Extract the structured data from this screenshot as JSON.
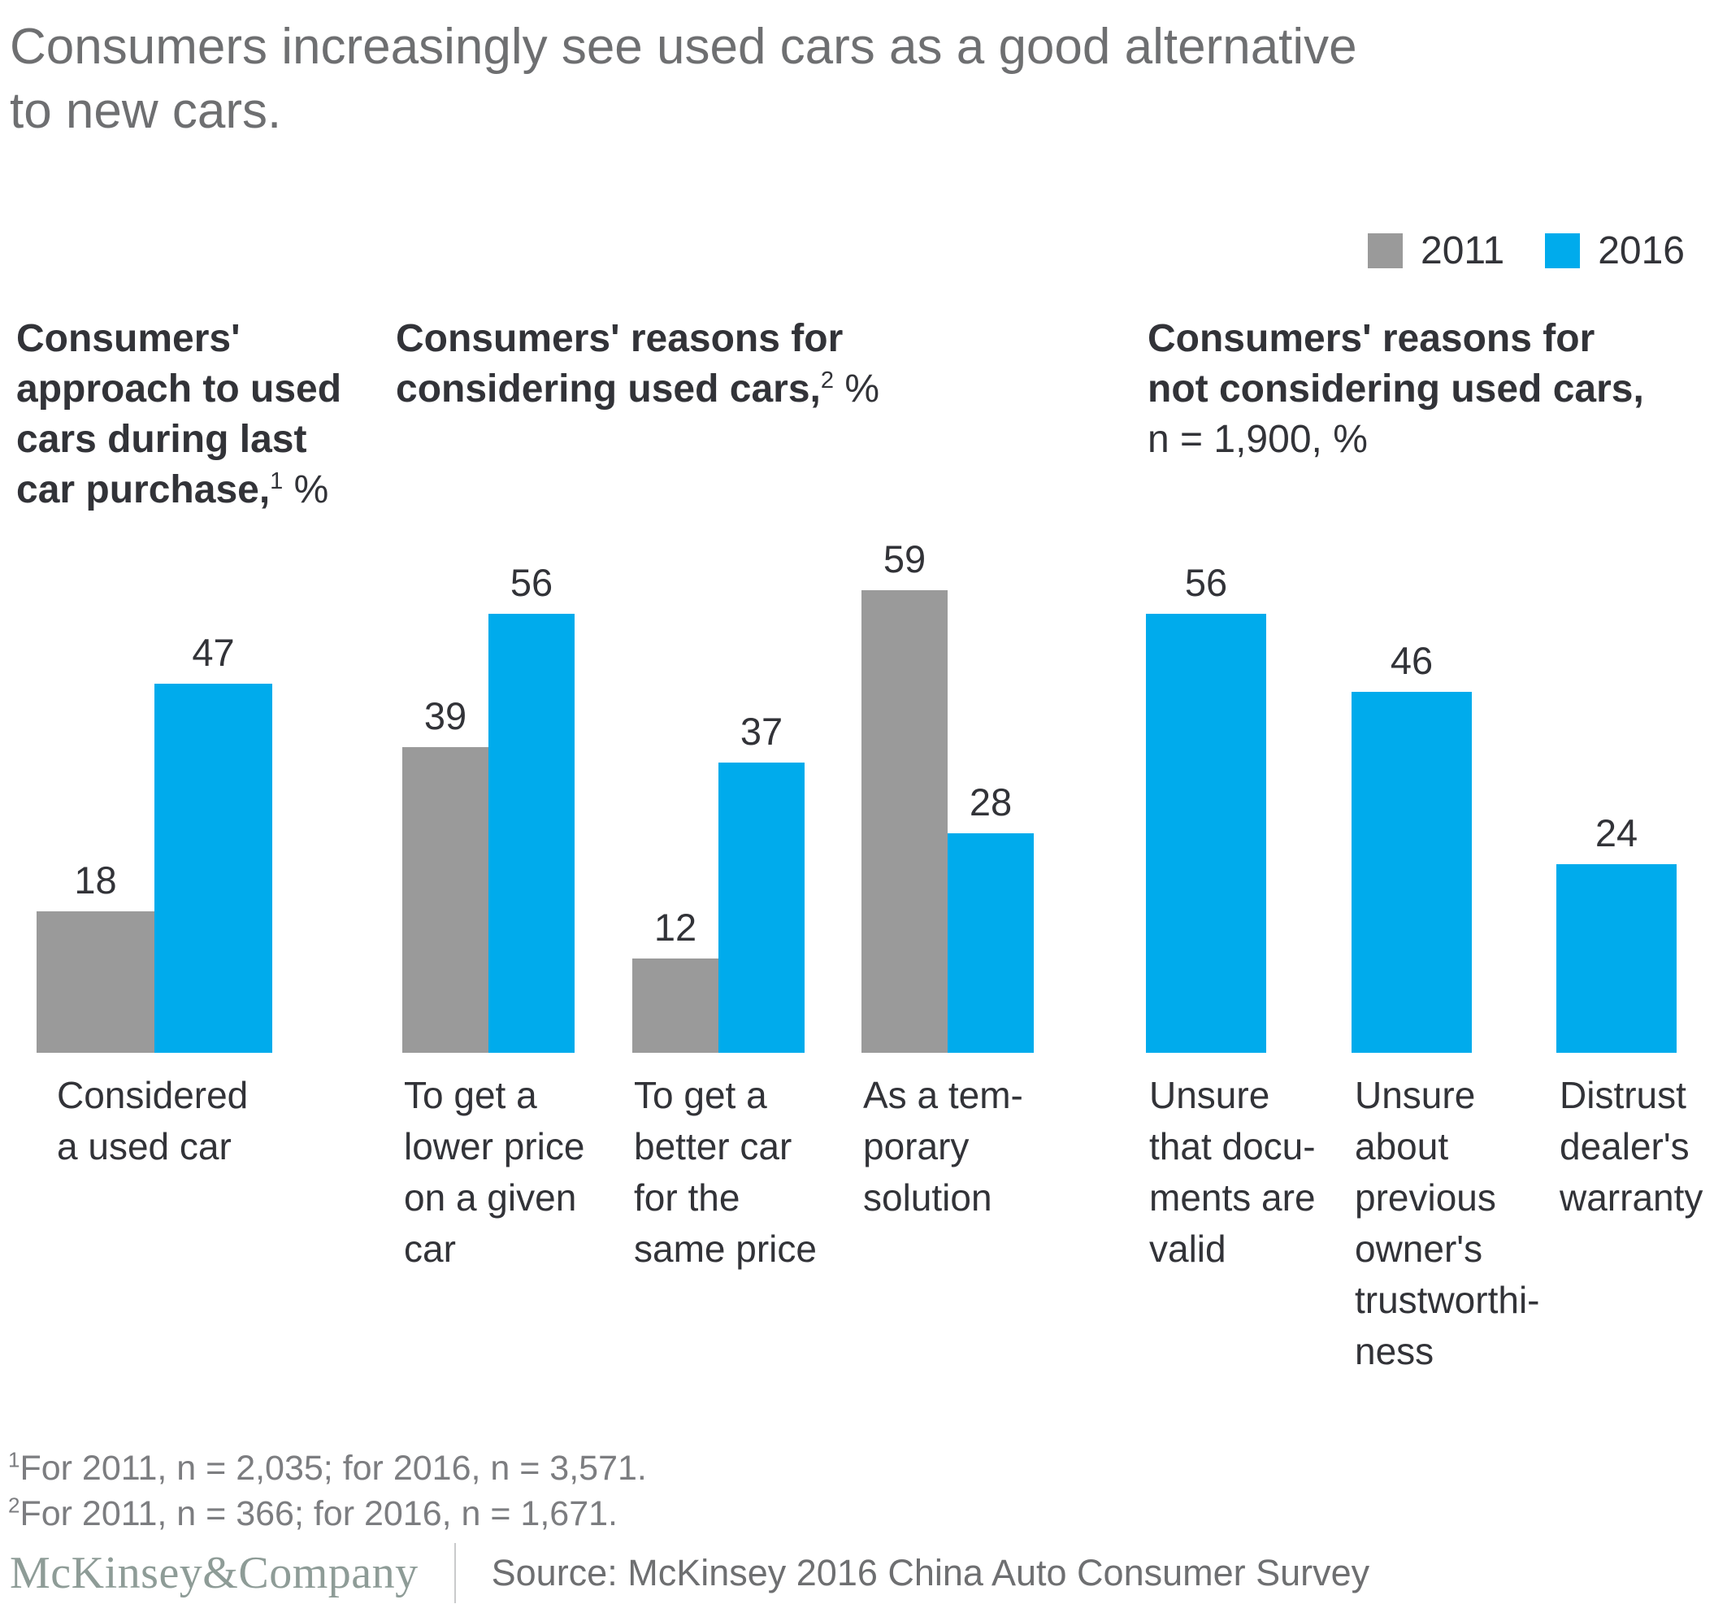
{
  "title": {
    "lines": [
      "Consumers increasingly see used cars as a good alternative",
      "to new cars."
    ]
  },
  "chart_data": {
    "type": "bar",
    "title": "Consumers increasingly see used cars as a good alternative to new cars.",
    "unit": "%",
    "grid": false,
    "legend_position": "top-right",
    "series": [
      {
        "name": "2011",
        "color": "#9A9A9A"
      },
      {
        "name": "2016",
        "color": "#00ABEC"
      }
    ],
    "panels": [
      {
        "heading_lines": [
          {
            "text": "Consumers'",
            "bold": true
          },
          {
            "text": "approach to used",
            "bold": true
          },
          {
            "text": "cars during last",
            "bold": true
          },
          {
            "text": "car purchase,",
            "bold": true,
            "sup": "1",
            "after": " %"
          }
        ],
        "groups": [
          {
            "label": "Considered a used car",
            "label_lines": [
              "Considered",
              "a used car"
            ],
            "values": [
              18,
              47
            ]
          }
        ]
      },
      {
        "heading_lines": [
          {
            "text": "Consumers' reasons for",
            "bold": true
          },
          {
            "text": "considering used cars,",
            "bold": true,
            "sup": "2",
            "after": " %"
          }
        ],
        "groups": [
          {
            "label": "To get a lower price on a given car",
            "label_lines": [
              "To get a",
              "lower price",
              "on a given",
              "car"
            ],
            "values": [
              39,
              56
            ]
          },
          {
            "label": "To get a better car for the same price",
            "label_lines": [
              "To get a",
              "better car",
              "for the",
              "same price"
            ],
            "values": [
              12,
              37
            ]
          },
          {
            "label": "As a temporary solution",
            "label_lines": [
              "As a tem-",
              "porary",
              "solution"
            ],
            "values": [
              59,
              28
            ]
          }
        ]
      },
      {
        "heading_lines": [
          {
            "text": "Consumers' reasons for",
            "bold": true
          },
          {
            "text": "not considering used cars,",
            "bold": true
          },
          {
            "text": "n = 1,900, %",
            "bold": false
          }
        ],
        "groups": [
          {
            "label": "Unsure that documents are valid",
            "label_lines": [
              "Unsure",
              "that docu-",
              "ments are",
              "valid"
            ],
            "values": [
              null,
              56
            ]
          },
          {
            "label": "Unsure about previous owner's trustworthiness",
            "label_lines": [
              "Unsure",
              "about",
              "previous",
              "owner's",
              "trustworthi-",
              "ness"
            ],
            "values": [
              null,
              46
            ]
          },
          {
            "label": "Distrust dealer's warranty",
            "label_lines": [
              "Distrust",
              "dealer's",
              "warranty"
            ],
            "values": [
              null,
              24
            ]
          }
        ]
      }
    ]
  },
  "footnotes": [
    {
      "sup": "1",
      "text": "For 2011, n = 2,035; for 2016, n = 3,571."
    },
    {
      "sup": "2",
      "text": "For 2011, n = 366; for 2016, n = 1,671."
    }
  ],
  "footer": {
    "brand": "McKinsey&Company",
    "source": "Source: McKinsey 2016 China Auto Consumer Survey"
  }
}
